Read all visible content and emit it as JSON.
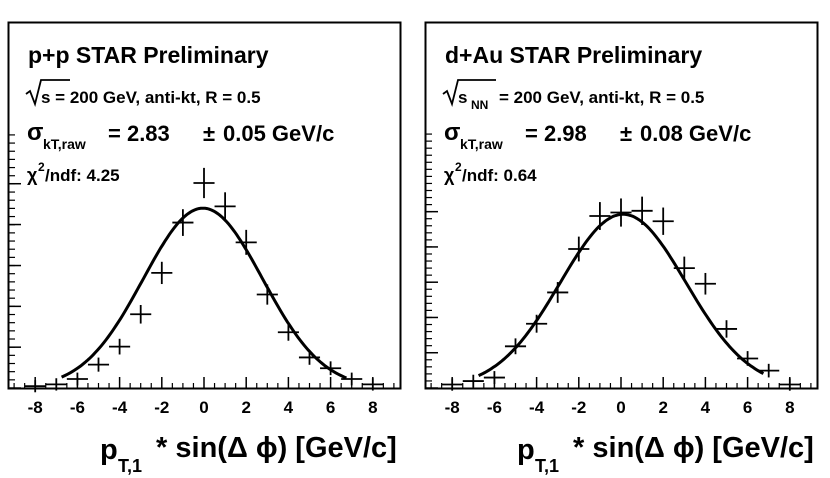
{
  "chart_data": [
    {
      "type": "scatter",
      "name": "pp",
      "title": "p+p  STAR Preliminary",
      "energy_text": "s = 200 GeV, anti-kt, R = 0.5",
      "sigma_label": "σ",
      "sigma_sub": "kT,raw",
      "sigma_value": "= 2.83",
      "sigma_pm": "±",
      "sigma_error": "0.05 GeV/c",
      "chi2_label": "χ",
      "chi2_sup": "2",
      "chi2_text": "/ndf: 4.25",
      "xlabel": "p",
      "xlabel_sub": "T,1",
      "xlabel_rest": " * sin(Δ ϕ) [GeV/c]",
      "xlim": [
        -9,
        9
      ],
      "ylim": [
        0,
        1.14
      ],
      "xticks": [
        -8,
        -6,
        -4,
        -2,
        0,
        2,
        4,
        6,
        8
      ],
      "x": [
        -8,
        -7,
        -6,
        -5,
        -4,
        -3,
        -2,
        -1,
        0,
        1,
        2,
        3,
        4,
        5,
        6,
        7,
        8
      ],
      "y": [
        0.01,
        0.02,
        0.05,
        0.13,
        0.23,
        0.41,
        0.64,
        0.92,
        1.14,
        1.01,
        0.81,
        0.52,
        0.31,
        0.17,
        0.11,
        0.05,
        0.02
      ],
      "fit": {
        "amplitude": 1.0,
        "mean": -0.05,
        "sigma": 2.83
      },
      "y_ticks_major": [
        0.0,
        0.227,
        0.454,
        0.681,
        0.909,
        1.136
      ]
    },
    {
      "type": "scatter",
      "name": "dau",
      "title": "d+Au  STAR Preliminary",
      "energy_text": "= 200 GeV, anti-kt, R = 0.5",
      "energy_s": "s",
      "energy_sub": "NN",
      "sigma_label": "σ",
      "sigma_sub": "kT,raw",
      "sigma_value": "= 2.98",
      "sigma_pm": "±",
      "sigma_error": "0.08 GeV/c",
      "chi2_label": "χ",
      "chi2_sup": "2",
      "chi2_text": "/ndf: 0.64",
      "xlabel": "p",
      "xlabel_sub": "T,1",
      "xlabel_rest": " * sin(Δ ϕ) [GeV/c]",
      "xlim": [
        -9,
        9
      ],
      "ylim": [
        0,
        1.18
      ],
      "xticks": [
        -8,
        -6,
        -4,
        -2,
        0,
        2,
        4,
        6,
        8
      ],
      "x": [
        -8,
        -7,
        -6,
        -5,
        -4,
        -3,
        -2,
        -1,
        0,
        1,
        2,
        3,
        4,
        5,
        6,
        7,
        8
      ],
      "y": [
        0.02,
        0.04,
        0.06,
        0.24,
        0.37,
        0.55,
        0.8,
        0.99,
        1.01,
        1.02,
        0.96,
        0.69,
        0.6,
        0.34,
        0.17,
        0.1,
        0.02
      ],
      "fit": {
        "amplitude": 1.0,
        "mean": 0.1,
        "sigma": 2.98
      },
      "y_ticks_major": [
        0.0,
        0.203,
        0.406,
        0.609,
        0.812,
        1.015
      ]
    }
  ]
}
